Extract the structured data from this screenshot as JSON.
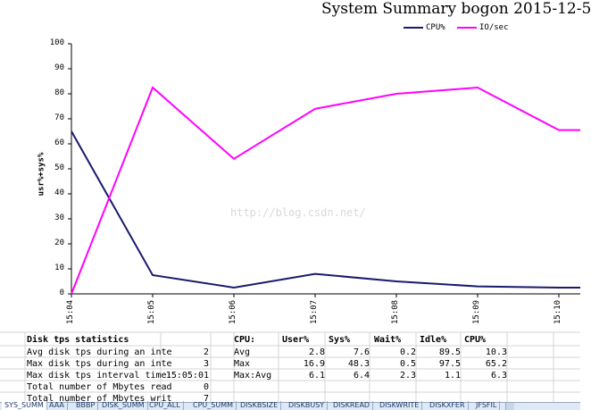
{
  "chart": {
    "title": "System Summary bogon  2015-12-5",
    "ylabel": "usr%+sys%",
    "watermark": "http://blog.csdn.net/",
    "legend": [
      {
        "name": "CPU%",
        "color": "#1a1a6e"
      },
      {
        "name": "IO/sec",
        "color": "#ff00ff"
      }
    ]
  },
  "chart_data": {
    "type": "line",
    "title": "System Summary bogon  2015-12-5",
    "xlabel": "",
    "ylabel": "usr%+sys%",
    "ylim": [
      0,
      100
    ],
    "yticks": [
      0,
      10,
      20,
      30,
      40,
      50,
      60,
      70,
      80,
      90,
      100
    ],
    "categories": [
      "15:04",
      "15:05",
      "15:06",
      "15:07",
      "15:08",
      "15:09",
      "15:10"
    ],
    "series": [
      {
        "name": "CPU%",
        "color": "#1a1a6e",
        "values": [
          65,
          7.5,
          2.5,
          8,
          5,
          3,
          2.5
        ]
      },
      {
        "name": "IO/sec",
        "color": "#ff00ff",
        "values": [
          0,
          82.5,
          54,
          74,
          80,
          82.5,
          65.5
        ]
      }
    ],
    "grid": false,
    "legend": "top"
  },
  "disk": {
    "heading": "Disk tps statistics",
    "rows": [
      {
        "label": "Avg disk tps during an inte",
        "value": "2"
      },
      {
        "label": "Max disk tps during an inte",
        "value": "3"
      },
      {
        "label": "Max disk tps interval time:",
        "value": "15:05:01"
      },
      {
        "label": "Total number of Mbytes read",
        "value": "0"
      },
      {
        "label": "Total number of Mbytes writ",
        "value": "7"
      }
    ]
  },
  "cpu": {
    "headers": [
      "CPU:",
      "User%",
      "Sys%",
      "Wait%",
      "Idle%",
      "CPU%"
    ],
    "rows": [
      {
        "label": "Avg",
        "values": [
          "2.8",
          "7.6",
          "0.2",
          "89.5",
          "10.3"
        ]
      },
      {
        "label": "Max",
        "values": [
          "16.9",
          "48.3",
          "0.5",
          "97.5",
          "65.2"
        ]
      },
      {
        "label": "Max:Avg",
        "values": [
          "6.1",
          "6.4",
          "2.3",
          "1.1",
          "6.3"
        ]
      }
    ]
  },
  "tabs": [
    "SYS_SUMM",
    "AAA",
    "BBBP",
    "DISK_SUMM",
    "CPU_ALL",
    "CPU_SUMM",
    "DISKBSIZE",
    "DISKBUSY",
    "DISKREAD",
    "DISKWRITE",
    "DISKXFER",
    "JFSFIL"
  ]
}
